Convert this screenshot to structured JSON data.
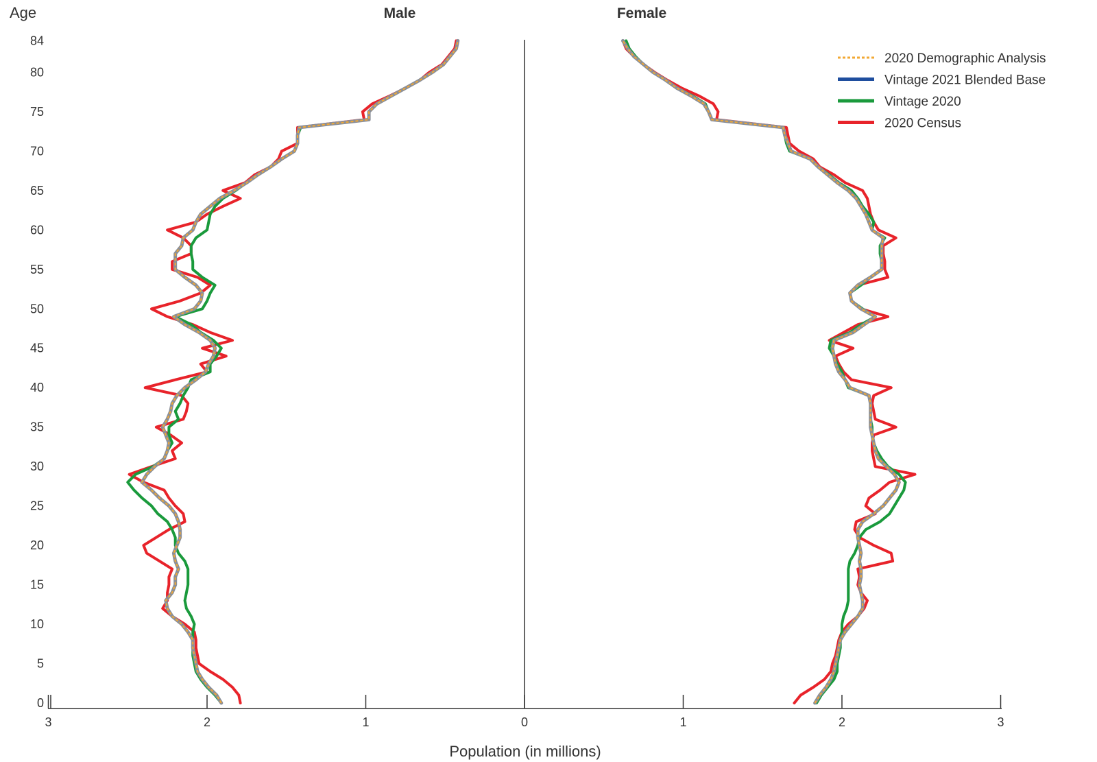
{
  "chart_data": {
    "type": "line",
    "subtype": "population-pyramid",
    "ylabel": "Age",
    "xlabel": "Population (in millions)",
    "side_titles": {
      "left": "Male",
      "right": "Female"
    },
    "xlim": [
      0,
      3
    ],
    "x_ticks": [
      "3",
      "2",
      "1",
      "0",
      "1",
      "2",
      "3"
    ],
    "y_ticks": [
      0,
      5,
      10,
      15,
      20,
      25,
      30,
      35,
      40,
      45,
      50,
      55,
      60,
      65,
      70,
      75,
      80,
      84
    ],
    "ylim": [
      0,
      84
    ],
    "legend_position": "top-right",
    "ages": [
      0,
      1,
      2,
      3,
      4,
      5,
      6,
      7,
      8,
      9,
      10,
      11,
      12,
      13,
      14,
      15,
      16,
      17,
      18,
      19,
      20,
      21,
      22,
      23,
      24,
      25,
      26,
      27,
      28,
      29,
      30,
      31,
      32,
      33,
      34,
      35,
      36,
      37,
      38,
      39,
      40,
      41,
      42,
      43,
      44,
      45,
      46,
      47,
      48,
      49,
      50,
      51,
      52,
      53,
      54,
      55,
      56,
      57,
      58,
      59,
      60,
      61,
      62,
      63,
      64,
      65,
      66,
      67,
      68,
      69,
      70,
      71,
      72,
      73,
      74,
      75,
      76,
      77,
      78,
      79,
      80,
      81,
      82,
      83,
      84
    ],
    "series": [
      {
        "name": "2020 Census",
        "color": "#e8232a",
        "dashed": false,
        "male": [
          1.79,
          1.8,
          1.84,
          1.9,
          1.98,
          2.05,
          2.06,
          2.07,
          2.07,
          2.08,
          2.14,
          2.22,
          2.28,
          2.25,
          2.25,
          2.24,
          2.24,
          2.22,
          2.3,
          2.38,
          2.4,
          2.32,
          2.24,
          2.14,
          2.15,
          2.2,
          2.24,
          2.27,
          2.4,
          2.49,
          2.35,
          2.2,
          2.22,
          2.16,
          2.23,
          2.32,
          2.15,
          2.13,
          2.12,
          2.16,
          2.39,
          2.2,
          2.0,
          2.04,
          1.88,
          2.03,
          1.84,
          1.98,
          2.09,
          2.25,
          2.35,
          2.17,
          2.04,
          1.98,
          2.06,
          2.22,
          2.22,
          2.1,
          2.1,
          2.15,
          2.25,
          2.07,
          2.0,
          1.9,
          1.79,
          1.9,
          1.76,
          1.7,
          1.6,
          1.55,
          1.53,
          1.43,
          1.43,
          1.43,
          1.01,
          1.02,
          0.96,
          0.85,
          0.75,
          0.66,
          0.6,
          0.52,
          0.48,
          0.44,
          0.43
        ],
        "female": [
          1.7,
          1.74,
          1.82,
          1.89,
          1.93,
          1.94,
          1.96,
          1.97,
          1.98,
          2.0,
          2.04,
          2.1,
          2.14,
          2.16,
          2.12,
          2.1,
          2.11,
          2.1,
          2.32,
          2.31,
          2.2,
          2.11,
          2.08,
          2.09,
          2.21,
          2.15,
          2.17,
          2.24,
          2.3,
          2.46,
          2.21,
          2.2,
          2.19,
          2.19,
          2.2,
          2.34,
          2.21,
          2.2,
          2.19,
          2.2,
          2.31,
          2.06,
          2.01,
          1.98,
          1.96,
          2.07,
          1.92,
          2.01,
          2.1,
          2.29,
          2.12,
          2.06,
          2.05,
          2.1,
          2.29,
          2.27,
          2.27,
          2.26,
          2.26,
          2.34,
          2.23,
          2.2,
          2.18,
          2.17,
          2.16,
          2.13,
          2.02,
          1.95,
          1.86,
          1.82,
          1.73,
          1.67,
          1.66,
          1.65,
          1.21,
          1.22,
          1.19,
          1.1,
          0.99,
          0.9,
          0.82,
          0.75,
          0.69,
          0.64,
          0.62
        ]
      },
      {
        "name": "Vintage 2020",
        "color": "#1a9a3c",
        "dashed": false,
        "male": [
          1.91,
          1.95,
          2.0,
          2.04,
          2.07,
          2.08,
          2.09,
          2.09,
          2.09,
          2.09,
          2.08,
          2.1,
          2.13,
          2.14,
          2.13,
          2.12,
          2.12,
          2.12,
          2.14,
          2.18,
          2.2,
          2.2,
          2.22,
          2.25,
          2.31,
          2.35,
          2.41,
          2.46,
          2.5,
          2.45,
          2.34,
          2.27,
          2.25,
          2.22,
          2.24,
          2.24,
          2.18,
          2.2,
          2.17,
          2.15,
          2.12,
          2.1,
          1.98,
          1.98,
          1.94,
          1.91,
          1.96,
          2.04,
          2.1,
          2.2,
          2.03,
          2.0,
          1.98,
          1.95,
          2.03,
          2.09,
          2.09,
          2.1,
          2.1,
          2.07,
          2.0,
          1.99,
          1.98,
          1.95,
          1.9,
          1.82,
          1.75,
          1.68,
          1.6,
          1.53,
          1.45,
          1.43,
          1.43,
          1.41,
          0.98,
          0.98,
          0.93,
          0.84,
          0.75,
          0.66,
          0.58,
          0.51,
          0.47,
          0.43,
          0.42
        ],
        "female": [
          1.84,
          1.87,
          1.91,
          1.95,
          1.97,
          1.97,
          1.98,
          1.99,
          1.99,
          2.0,
          2.0,
          2.01,
          2.03,
          2.04,
          2.04,
          2.04,
          2.04,
          2.04,
          2.05,
          2.08,
          2.1,
          2.11,
          2.15,
          2.24,
          2.3,
          2.33,
          2.36,
          2.39,
          2.4,
          2.36,
          2.29,
          2.25,
          2.22,
          2.2,
          2.19,
          2.19,
          2.18,
          2.18,
          2.18,
          2.17,
          2.04,
          2.02,
          2.0,
          1.97,
          1.95,
          1.92,
          1.93,
          2.05,
          2.12,
          2.21,
          2.13,
          2.06,
          2.05,
          2.12,
          2.18,
          2.25,
          2.25,
          2.24,
          2.24,
          2.27,
          2.19,
          2.2,
          2.17,
          2.13,
          2.1,
          2.06,
          1.98,
          1.92,
          1.85,
          1.8,
          1.67,
          1.65,
          1.64,
          1.63,
          1.18,
          1.16,
          1.14,
          1.06,
          0.96,
          0.89,
          0.81,
          0.75,
          0.7,
          0.66,
          0.64
        ]
      },
      {
        "name": "Vintage 2021 Blended Base",
        "color": "#1f4e9e",
        "dashed": false,
        "male": [
          1.91,
          1.94,
          1.99,
          2.03,
          2.06,
          2.07,
          2.08,
          2.09,
          2.09,
          2.12,
          2.16,
          2.22,
          2.25,
          2.26,
          2.22,
          2.2,
          2.2,
          2.18,
          2.2,
          2.21,
          2.19,
          2.17,
          2.17,
          2.18,
          2.2,
          2.24,
          2.3,
          2.35,
          2.41,
          2.38,
          2.33,
          2.27,
          2.25,
          2.24,
          2.26,
          2.28,
          2.25,
          2.23,
          2.22,
          2.19,
          2.14,
          2.07,
          2.01,
          1.99,
          1.96,
          1.95,
          1.98,
          2.05,
          2.14,
          2.21,
          2.08,
          2.04,
          2.03,
          2.07,
          2.14,
          2.2,
          2.2,
          2.2,
          2.16,
          2.15,
          2.09,
          2.07,
          2.04,
          1.98,
          1.92,
          1.83,
          1.75,
          1.68,
          1.6,
          1.53,
          1.45,
          1.43,
          1.43,
          1.42,
          0.98,
          0.98,
          0.93,
          0.84,
          0.75,
          0.66,
          0.58,
          0.51,
          0.47,
          0.43,
          0.42
        ],
        "female": [
          1.83,
          1.86,
          1.9,
          1.93,
          1.95,
          1.96,
          1.97,
          1.98,
          1.99,
          2.02,
          2.06,
          2.1,
          2.13,
          2.13,
          2.12,
          2.11,
          2.12,
          2.12,
          2.11,
          2.12,
          2.11,
          2.1,
          2.1,
          2.13,
          2.2,
          2.26,
          2.3,
          2.34,
          2.36,
          2.33,
          2.28,
          2.23,
          2.21,
          2.2,
          2.19,
          2.18,
          2.18,
          2.18,
          2.18,
          2.17,
          2.05,
          2.02,
          1.98,
          1.96,
          1.95,
          1.94,
          1.95,
          2.07,
          2.14,
          2.21,
          2.12,
          2.06,
          2.05,
          2.1,
          2.18,
          2.25,
          2.25,
          2.25,
          2.25,
          2.26,
          2.19,
          2.17,
          2.15,
          2.12,
          2.09,
          2.04,
          1.97,
          1.91,
          1.85,
          1.8,
          1.68,
          1.66,
          1.64,
          1.63,
          1.18,
          1.16,
          1.13,
          1.05,
          0.96,
          0.89,
          0.81,
          0.75,
          0.69,
          0.65,
          0.62
        ]
      },
      {
        "name": "2020 Demographic Analysis",
        "color": "#f2a833",
        "dashed": true,
        "male": [
          1.91,
          1.94,
          1.99,
          2.03,
          2.06,
          2.07,
          2.08,
          2.09,
          2.09,
          2.12,
          2.16,
          2.22,
          2.25,
          2.26,
          2.22,
          2.2,
          2.2,
          2.18,
          2.2,
          2.21,
          2.19,
          2.17,
          2.17,
          2.18,
          2.2,
          2.24,
          2.3,
          2.35,
          2.41,
          2.38,
          2.33,
          2.27,
          2.25,
          2.24,
          2.26,
          2.28,
          2.25,
          2.23,
          2.22,
          2.19,
          2.14,
          2.07,
          2.01,
          1.99,
          1.96,
          1.95,
          1.98,
          2.05,
          2.14,
          2.21,
          2.08,
          2.04,
          2.03,
          2.07,
          2.14,
          2.2,
          2.2,
          2.2,
          2.16,
          2.15,
          2.09,
          2.07,
          2.04,
          1.98,
          1.92,
          1.83,
          1.75,
          1.68,
          1.6,
          1.53,
          1.45,
          1.43,
          1.43,
          1.42,
          0.98,
          0.98,
          0.93,
          0.84,
          0.75,
          0.66,
          0.58,
          0.51,
          0.47,
          0.43,
          0.42
        ],
        "female": [
          1.83,
          1.86,
          1.9,
          1.93,
          1.95,
          1.96,
          1.97,
          1.98,
          1.99,
          2.02,
          2.06,
          2.1,
          2.13,
          2.13,
          2.12,
          2.11,
          2.12,
          2.12,
          2.11,
          2.12,
          2.11,
          2.1,
          2.1,
          2.13,
          2.2,
          2.26,
          2.3,
          2.34,
          2.36,
          2.33,
          2.28,
          2.23,
          2.21,
          2.2,
          2.19,
          2.18,
          2.18,
          2.18,
          2.18,
          2.17,
          2.05,
          2.02,
          1.98,
          1.96,
          1.95,
          1.94,
          1.95,
          2.07,
          2.14,
          2.21,
          2.12,
          2.06,
          2.05,
          2.1,
          2.18,
          2.25,
          2.25,
          2.25,
          2.25,
          2.26,
          2.19,
          2.17,
          2.15,
          2.12,
          2.09,
          2.04,
          1.97,
          1.91,
          1.85,
          1.8,
          1.68,
          1.66,
          1.64,
          1.63,
          1.18,
          1.16,
          1.13,
          1.05,
          0.96,
          0.89,
          0.81,
          0.75,
          0.69,
          0.65,
          0.62
        ]
      }
    ],
    "legend_order": [
      "2020 Demographic Analysis",
      "Vintage 2021 Blended Base",
      "Vintage 2020",
      "2020 Census"
    ]
  }
}
